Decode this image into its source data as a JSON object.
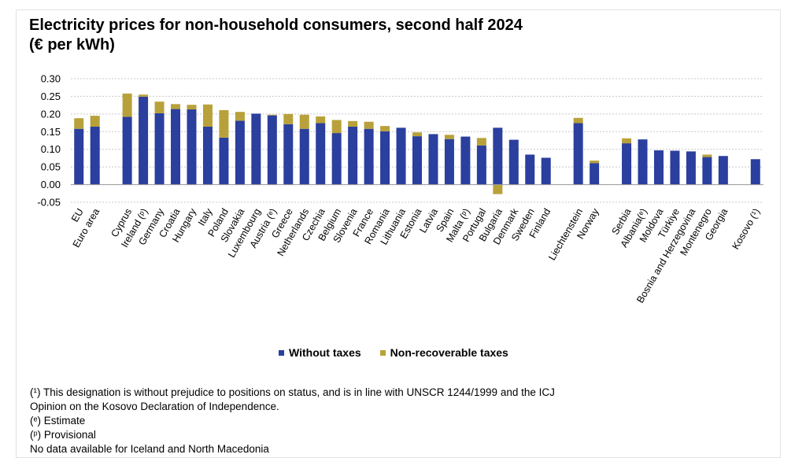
{
  "colors": {
    "without_taxes": "#2a3f9e",
    "non_recoverable_taxes": "#b8a13a",
    "grid": "#c8c8c8",
    "text": "#000000"
  },
  "title": {
    "line1": "Electricity prices for non-household consumers, second half 2024",
    "line2": "(€ per kWh)"
  },
  "legend": {
    "without_taxes": "Without taxes",
    "non_recoverable_taxes": "Non-recoverable taxes"
  },
  "notes": [
    "(¹) This designation is without  prejudice to positions on status, and is in line with UNSCR 1244/1999 and the ICJ",
    "Opinion on the Kosovo Declaration of Independence.",
    "(ᵉ) Estimate",
    "(ᵖ) Provisional",
    "No data available for Iceland  and North Macedonia"
  ],
  "chart_data": {
    "type": "bar",
    "stacked": true,
    "title": "Electricity prices for non-household consumers, second half 2024 (€ per kWh)",
    "xlabel": "",
    "ylabel": "",
    "ylim": [
      -0.05,
      0.3
    ],
    "yticks": [
      "-0.05",
      "0.00",
      "0.05",
      "0.10",
      "0.15",
      "0.20",
      "0.25",
      "0.30"
    ],
    "ytick_values": [
      -0.05,
      0.0,
      0.05,
      0.1,
      0.15,
      0.2,
      0.25,
      0.3
    ],
    "grid": true,
    "legend_position": "bottom",
    "categories": [
      "EU",
      "Euro area",
      "",
      "Cyprus",
      "Ireland (ᵖ)",
      "Germany",
      "Croatia",
      "Hungary",
      "Italy",
      "Poland",
      "Slovakia",
      "Luxembourg",
      "Austria (ᵉ)",
      "Greece",
      "Netherlands",
      "Czechia",
      "Belgium",
      "Slovenia",
      "France",
      "Romania",
      "Lithuania",
      "Estonia",
      "Latvia",
      "Spain",
      "Malta (ᵖ)",
      "Portugal",
      "Bulgaria",
      "Denmark",
      "Sweden",
      "Finland",
      "",
      "Liechtenstein",
      "Norway",
      "",
      "Serbia",
      "Albania(ᵉ)",
      "Moldova",
      "Türkiye",
      "Bosnia and Herzegovina",
      "Montenegro",
      "Georgia",
      "",
      "Kosovo (¹)"
    ],
    "series": [
      {
        "name": "Without taxes",
        "values": [
          0.158,
          0.164,
          null,
          0.192,
          0.249,
          0.202,
          0.214,
          0.213,
          0.164,
          0.133,
          0.181,
          0.201,
          0.196,
          0.171,
          0.158,
          0.174,
          0.146,
          0.164,
          0.158,
          0.151,
          0.161,
          0.137,
          0.143,
          0.129,
          0.136,
          0.111,
          0.161,
          0.127,
          0.085,
          0.076,
          null,
          0.174,
          0.061,
          null,
          0.117,
          0.128,
          0.097,
          0.096,
          0.094,
          0.078,
          0.081,
          null,
          0.072
        ]
      },
      {
        "name": "Non-recoverable taxes",
        "values": [
          0.03,
          0.031,
          null,
          0.066,
          0.006,
          0.033,
          0.014,
          0.013,
          0.063,
          0.078,
          0.025,
          0.0,
          0.002,
          0.029,
          0.04,
          0.019,
          0.037,
          0.016,
          0.02,
          0.015,
          0.0,
          0.011,
          0.0,
          0.012,
          0.0,
          0.021,
          -0.027,
          0.0,
          0.0,
          0.0,
          null,
          0.015,
          0.007,
          null,
          0.014,
          0.0,
          0.0,
          0.0,
          0.0,
          0.007,
          0.0,
          null,
          0.0
        ]
      }
    ]
  }
}
